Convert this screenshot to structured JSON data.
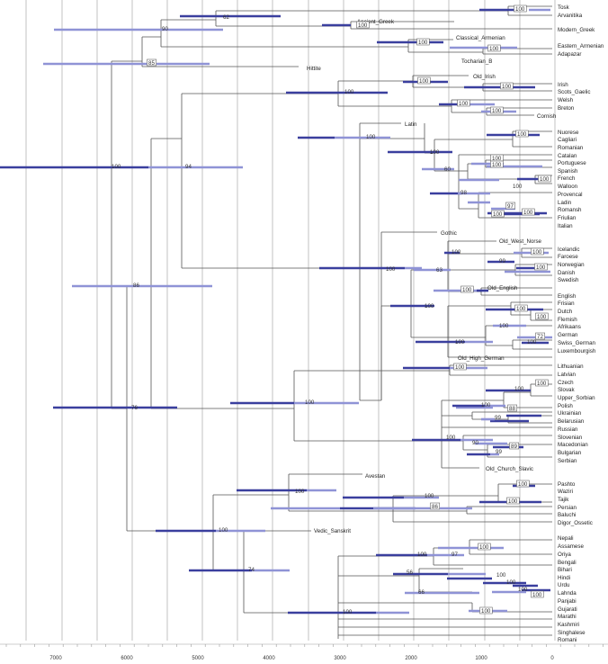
{
  "axis_ticks": [
    "7000",
    "6000",
    "5000",
    "4000",
    "3000",
    "2000",
    "1000",
    "0"
  ],
  "taxa": {
    "Tosk": "Tosk",
    "Arvanitika": "Arvanitika",
    "Ancient_Greek": "Ancient_Greek",
    "Modern_Greek": "Modern_Greek",
    "Classical_Armenian": "Classical_Armenian",
    "Eastern_Armenian": "Eastern_Armenian",
    "Adapazar": "Adapazar",
    "Tocharian_B": "Tocharian_B",
    "Hittite": "Hittite",
    "Old_Irish": "Old_Irish",
    "Irish": "Irish",
    "Scots_Gaelic": "Scots_Gaelic",
    "Welsh": "Welsh",
    "Breton": "Breton",
    "Cornish": "Cornish",
    "Latin": "Latin",
    "Nuorese": "Nuorese",
    "Cagliari": "Cagliari",
    "Romanian": "Romanian",
    "Catalan": "Catalan",
    "Portuguese": "Portuguese",
    "Spanish": "Spanish",
    "French": "French",
    "Walloon": "Walloon",
    "Provencal": "Provencal",
    "Ladin": "Ladin",
    "Romansh": "Romansh",
    "Friulian": "Friulian",
    "Italian": "Italian",
    "Gothic": "Gothic",
    "Old_West_Norse": "Old_West_Norse",
    "Icelandic": "Icelandic",
    "Faroese": "Faroese",
    "Norwegian": "Norwegian",
    "Danish": "Danish",
    "Swedish": "Swedish",
    "Old_English": "Old_English",
    "English": "English",
    "Frisian": "Frisian",
    "Dutch": "Dutch",
    "Flemish": "Flemish",
    "Afrikaans": "Afrikaans",
    "German": "German",
    "Swiss_German": "Swiss_German",
    "Luxembourgish": "Luxembourgish",
    "Old_High_German": "Old_High_German",
    "Lithuanian": "Lithuanian",
    "Latvian": "Latvian",
    "Czech": "Czech",
    "Slovak": "Slovak",
    "Upper_Sorbian": "Upper_Sorbian",
    "Polish": "Polish",
    "Ukrainian": "Ukrainian",
    "Belarusian": "Belarusian",
    "Russian": "Russian",
    "Slovenian": "Slovenian",
    "Macedonian": "Macedonian",
    "Bulgarian": "Bulgarian",
    "Serbian": "Serbian",
    "Old_Church_Slavic": "Old_Church_Slavic",
    "Avestan": "Avestan",
    "Pashto": "Pashto",
    "Waziri": "Waziri",
    "Tajik": "Tajik",
    "Persian": "Persian",
    "Baluchi": "Baluchi",
    "Digor_Ossetic": "Digor_Ossetic",
    "Vedic_Sanskrit": "Vedic_Sanskrit",
    "Nepali": "Nepali",
    "Assamese": "Assamese",
    "Oriya": "Oriya",
    "Bengali": "Bengali",
    "Bihari": "Bihari",
    "Hindi": "Hindi",
    "Urdu": "Urdu",
    "Lahnda": "Lahnda",
    "Panjabi": "Panjabi",
    "Gujarati": "Gujarati",
    "Marathi": "Marathi",
    "Kashmiri": "Kashmiri",
    "Singhalese": "Singhalese",
    "Romani": "Romani"
  },
  "supports": {
    "albanian": "100",
    "greek_albanian": "62",
    "greek": "100",
    "greek_armenian": "90",
    "armenian_pair": "100",
    "armenian": "100",
    "tocharian_hittite": "85",
    "root": "100",
    "irish": "100",
    "goidelic": "100",
    "celtic": "100",
    "brittonic": "100",
    "br_co": "100",
    "core": "94",
    "romance_latin": "100",
    "sardinian": "100",
    "romance": "100",
    "ibero_gallo": "60",
    "ib": "100",
    "spanish": "100",
    "rhaeto": "98",
    "fr_wa": "100",
    "walloon": "100",
    "ladin_rom": "97",
    "romansh": "100",
    "friulian": "100",
    "germanic": "100",
    "north_germanic": "63",
    "west_norse": "100",
    "icel_far": "100",
    "norwegian": "99",
    "danish": "100",
    "west_germanic": "100",
    "old_english": "100",
    "frisian_dutch": "100",
    "dutch": "100",
    "flemish": "100",
    "german_grp": "100",
    "swiss": "72",
    "lux": "100",
    "balto_slavic": "100",
    "baltic": "100",
    "slavic": "100",
    "westslav": "100",
    "czech": "100",
    "east_west": "100",
    "ukr": "88",
    "belarus": "99",
    "south_slavic": "90",
    "maced": "89",
    "bulg": "99",
    "northwest": "86",
    "satem": "76",
    "indo_iranian": "100",
    "iranian": "100",
    "east_iranian": "100",
    "pashto": "100",
    "persian": "86",
    "tajik": "100",
    "indic": "100",
    "indic_sub": "74",
    "indic_core": "100",
    "east_indic": "97",
    "assamese": "100",
    "hindi_grp": "56",
    "hindi": "100",
    "urdu": "100",
    "lahnda": "100",
    "panjabi": "100",
    "gujarati_grp": "66",
    "gujarati": "100"
  }
}
